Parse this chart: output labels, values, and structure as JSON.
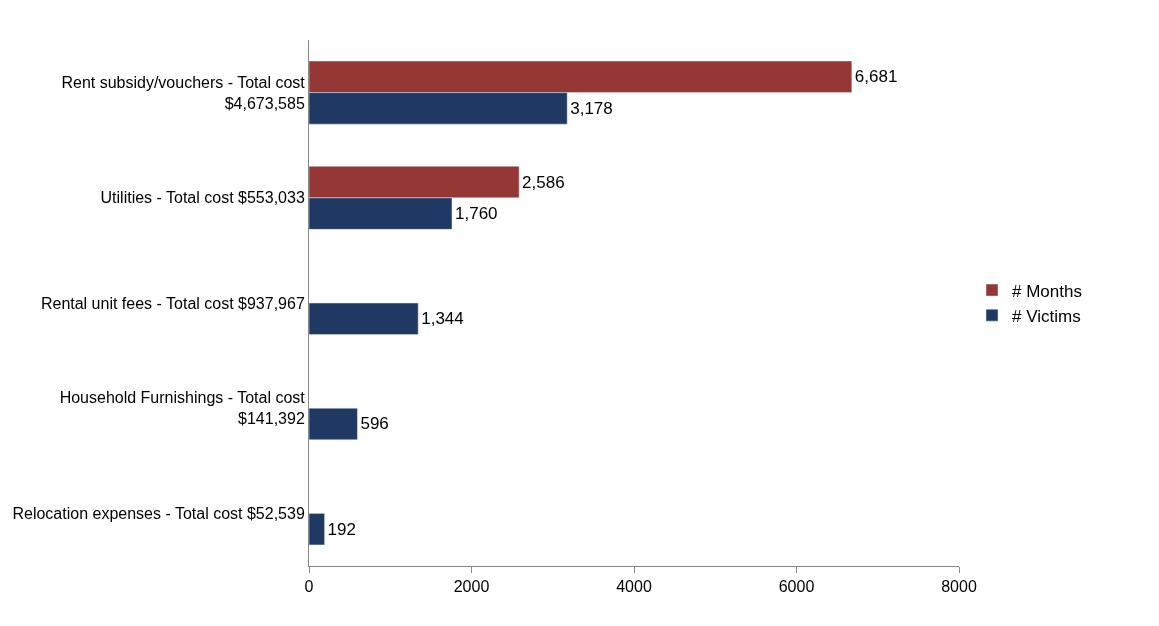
{
  "chart_data": {
    "type": "bar",
    "orientation": "horizontal",
    "categories": [
      "Rent subsidy/vouchers - Total cost\n$4,673,585",
      "Utilities - Total cost $553,033",
      "Rental unit fees - Total cost $937,967",
      "Household Furnishings - Total cost\n$141,392",
      "Relocation expenses - Total cost $52,539"
    ],
    "series": [
      {
        "name": "# Months",
        "color": "#953735",
        "values": [
          6681,
          2586,
          null,
          null,
          null
        ],
        "value_labels": [
          "6,681",
          "2,586",
          null,
          null,
          null
        ]
      },
      {
        "name": "# Victims",
        "color": "#1f3864",
        "values": [
          3178,
          1760,
          1344,
          596,
          192
        ],
        "value_labels": [
          "3,178",
          "1,760",
          "1,344",
          "596",
          "192"
        ]
      }
    ],
    "xlim": [
      0,
      8000
    ],
    "xticks": [
      0,
      2000,
      4000,
      6000,
      8000
    ],
    "legend": "right"
  }
}
